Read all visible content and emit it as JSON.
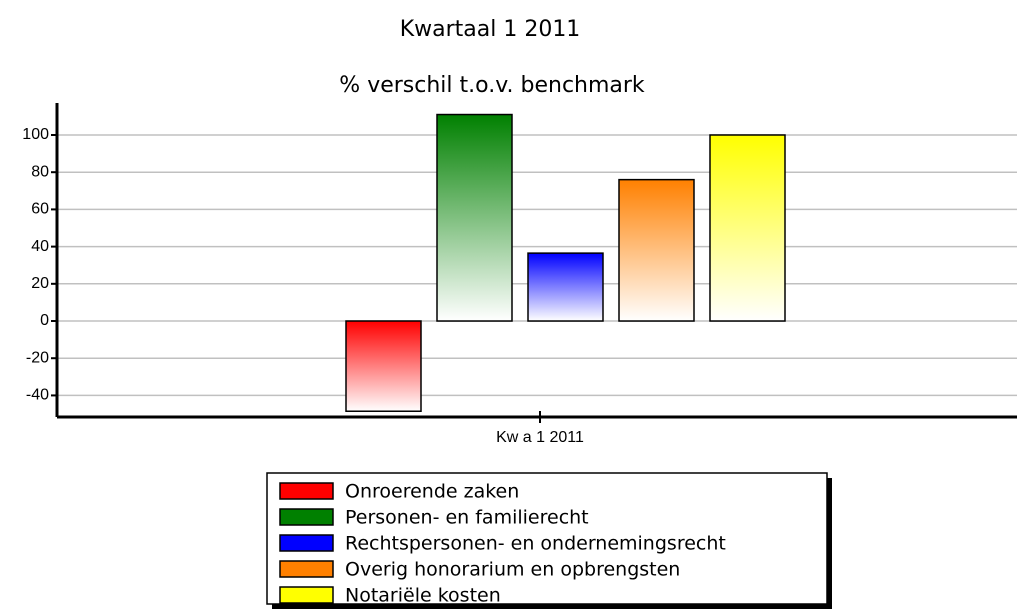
{
  "chart_data": {
    "type": "bar",
    "title": "Kwartaal 1 2011",
    "subtitle": "% verschil t.o.v. benchmark",
    "categories": [
      "Kw a 1 2011"
    ],
    "series": [
      {
        "name": "Onroerende zaken",
        "color": "#ff0000",
        "values": [
          -48.5
        ]
      },
      {
        "name": "Personen- en familierecht",
        "color": "#008000",
        "values": [
          111
        ]
      },
      {
        "name": "Rechtspersonen- en ondernemingsrecht",
        "color": "#0000ff",
        "values": [
          36.5
        ]
      },
      {
        "name": "Overig honorarium en opbrengsten",
        "color": "#ff8000",
        "values": [
          76
        ]
      },
      {
        "name": "Notariële kosten",
        "color": "#ffff00",
        "values": [
          100
        ]
      }
    ],
    "ylim": [
      -51.6,
      117.2
    ],
    "yticks": [
      -40,
      -20,
      0,
      20,
      40,
      60,
      80,
      100
    ],
    "grid": true,
    "legend": "bottom"
  }
}
